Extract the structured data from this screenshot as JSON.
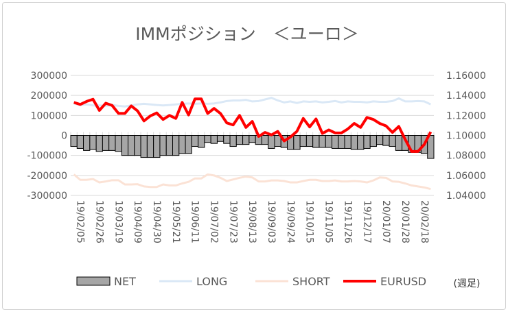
{
  "chart_data": {
    "type": "bar+line",
    "title": "IMMポジション　＜ユーロ＞",
    "note": "(週足)",
    "left_axis": {
      "ylim": [
        -300000,
        300000
      ],
      "ticks": [
        "300000",
        "200000",
        "100000",
        "0",
        "-100000",
        "-200000",
        "-300000"
      ]
    },
    "right_axis": {
      "ylim": [
        1.04,
        1.16
      ],
      "ticks": [
        "1.16000",
        "1.14000",
        "1.12000",
        "1.10000",
        "1.08000",
        "1.06000",
        "1.04000"
      ]
    },
    "x_labels": [
      "19/02/05",
      "19/02/26",
      "19/03/19",
      "19/04/09",
      "19/04/30",
      "19/05/21",
      "19/06/11",
      "19/07/02",
      "19/07/23",
      "19/08/13",
      "19/09/03",
      "19/09/24",
      "19/10/15",
      "19/11/05",
      "19/11/26",
      "19/12/17",
      "20/01/07",
      "20/01/28",
      "20/02/18"
    ],
    "label_every": 3,
    "legend": [
      "NET",
      "LONG",
      "SHORT",
      "EURUSD"
    ],
    "colors": {
      "NET": "#a6a6a6",
      "LONG": "#dae8f6",
      "SHORT": "#fbe2d5",
      "EURUSD": "#ff0000"
    },
    "series": [
      {
        "name": "NET",
        "axis": "left",
        "values": [
          -55000,
          -65000,
          -75000,
          -70000,
          -80000,
          -75000,
          -75000,
          -80000,
          -100000,
          -100000,
          -100000,
          -110000,
          -110000,
          -110000,
          -100000,
          -100000,
          -100000,
          -90000,
          -90000,
          -55000,
          -60000,
          -35000,
          -40000,
          -30000,
          -40000,
          -55000,
          -45000,
          -45000,
          -35000,
          -45000,
          -45000,
          -65000,
          -55000,
          -60000,
          -70000,
          -70000,
          -55000,
          -55000,
          -60000,
          -60000,
          -60000,
          -65000,
          -65000,
          -65000,
          -70000,
          -70000,
          -65000,
          -55000,
          -45000,
          -50000,
          -55000,
          -75000,
          -75000,
          -85000,
          -85000,
          -90000,
          -115000
        ]
      },
      {
        "name": "LONG",
        "axis": "left",
        "values": [
          160000,
          152000,
          155000,
          150000,
          150000,
          148000,
          152000,
          148000,
          145000,
          150000,
          155000,
          158000,
          155000,
          152000,
          150000,
          152000,
          155000,
          158000,
          160000,
          158000,
          160000,
          158000,
          160000,
          165000,
          172000,
          175000,
          175000,
          178000,
          170000,
          172000,
          180000,
          188000,
          175000,
          165000,
          170000,
          162000,
          170000,
          168000,
          170000,
          165000,
          168000,
          172000,
          165000,
          170000,
          168000,
          168000,
          165000,
          170000,
          168000,
          168000,
          172000,
          185000,
          170000,
          170000,
          172000,
          170000,
          155000
        ]
      },
      {
        "name": "SHORT",
        "axis": "left",
        "values": [
          -195000,
          -222000,
          -222000,
          -218000,
          -235000,
          -230000,
          -224000,
          -224000,
          -245000,
          -245000,
          -244000,
          -255000,
          -258000,
          -258000,
          -245000,
          -250000,
          -250000,
          -240000,
          -232000,
          -215000,
          -215000,
          -195000,
          -200000,
          -212000,
          -228000,
          -220000,
          -212000,
          -206000,
          -210000,
          -230000,
          -230000,
          -225000,
          -225000,
          -228000,
          -235000,
          -235000,
          -228000,
          -222000,
          -222000,
          -228000,
          -228000,
          -225000,
          -230000,
          -230000,
          -228000,
          -230000,
          -235000,
          -225000,
          -210000,
          -212000,
          -230000,
          -232000,
          -240000,
          -250000,
          -255000,
          -260000,
          -268000
        ]
      },
      {
        "name": "EURUSD",
        "axis": "right",
        "values": [
          1.133,
          1.131,
          1.134,
          1.1362,
          1.125,
          1.1322,
          1.13,
          1.122,
          1.122,
          1.1295,
          1.1245,
          1.1145,
          1.1195,
          1.1225,
          1.116,
          1.12,
          1.117,
          1.133,
          1.1205,
          1.1365,
          1.1365,
          1.122,
          1.127,
          1.122,
          1.1125,
          1.1105,
          1.12,
          1.108,
          1.114,
          1.099,
          1.103,
          1.1005,
          1.104,
          1.0945,
          1.0985,
          1.104,
          1.117,
          1.1085,
          1.1165,
          1.102,
          1.1055,
          1.1025,
          1.1025,
          1.1065,
          1.112,
          1.108,
          1.118,
          1.116,
          1.112,
          1.1095,
          1.103,
          1.109,
          1.096,
          1.084,
          1.084,
          1.091,
          1.1035
        ]
      }
    ]
  }
}
